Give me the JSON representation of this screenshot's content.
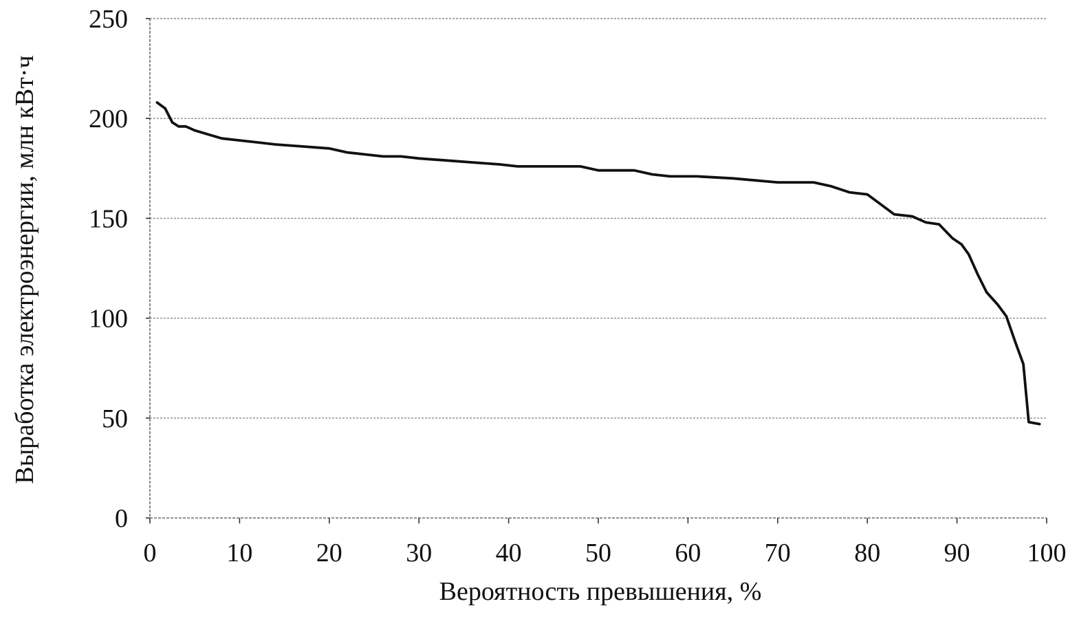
{
  "chart_data": {
    "type": "line",
    "title": "",
    "xlabel": "Вероятность превышения, %",
    "ylabel": "Выработка электроэнергии, млн кВт·ч",
    "xlim": [
      0,
      100
    ],
    "ylim": [
      0,
      250
    ],
    "x_ticks": [
      0,
      10,
      20,
      30,
      40,
      50,
      60,
      70,
      80,
      90,
      100
    ],
    "y_ticks": [
      0,
      50,
      100,
      150,
      200,
      250
    ],
    "x_tick_labels": [
      "0",
      "10",
      "20",
      "30",
      "40",
      "50",
      "60",
      "70",
      "80",
      "90",
      "100"
    ],
    "y_tick_labels": [
      "0",
      "50",
      "100",
      "150",
      "200",
      "250"
    ],
    "grid": "horizontal",
    "line_color": "#111111",
    "series": [
      {
        "x": [
          0.8,
          1.7,
          2.5,
          3.2,
          4.0,
          5.0,
          6.5,
          8.0,
          10.0,
          12.0,
          14.0,
          17.0,
          20.0,
          22.0,
          24.0,
          26.0,
          28.0,
          30.0,
          33.0,
          36.0,
          39.0,
          41.0,
          44.0,
          48.0,
          50.0,
          54.0,
          56.0,
          58.0,
          61.0,
          65.0,
          70.0,
          74.0,
          76.0,
          78.0,
          80.0,
          81.5,
          83.0,
          85.0,
          86.5,
          88.0,
          89.5,
          90.5,
          91.3,
          92.3,
          93.3,
          94.5,
          95.5,
          96.5,
          97.4,
          98.0,
          99.2
        ],
        "y": [
          208,
          205,
          198,
          196,
          196,
          194,
          192,
          190,
          189,
          188,
          187,
          186,
          185,
          183,
          182,
          181,
          181,
          180,
          179,
          178,
          177,
          176,
          176,
          176,
          174,
          174,
          172,
          171,
          171,
          170,
          168,
          168,
          166,
          163,
          162,
          157,
          152,
          151,
          148,
          147,
          140,
          137,
          132,
          122,
          113,
          107,
          101,
          88,
          77,
          48,
          47
        ]
      }
    ]
  }
}
